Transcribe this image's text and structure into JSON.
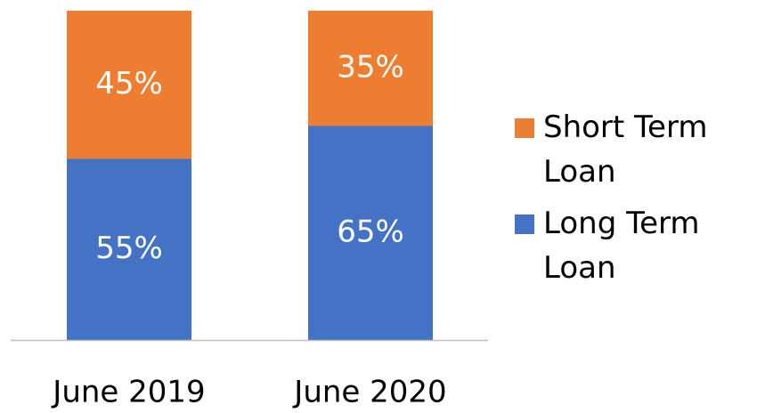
{
  "chart_data": {
    "type": "stacked_bar",
    "categories": [
      "June 2019",
      "June 2020"
    ],
    "series": [
      {
        "name": "Long Term Loan",
        "color": "#4472c4",
        "values": [
          55,
          65
        ],
        "value_labels": [
          "55%",
          "65%"
        ]
      },
      {
        "name": "Short Term Loan",
        "color": "#ed7d31",
        "values": [
          45,
          35
        ],
        "value_labels": [
          "45%",
          "35%"
        ]
      }
    ],
    "ylim": [
      0,
      100
    ]
  }
}
